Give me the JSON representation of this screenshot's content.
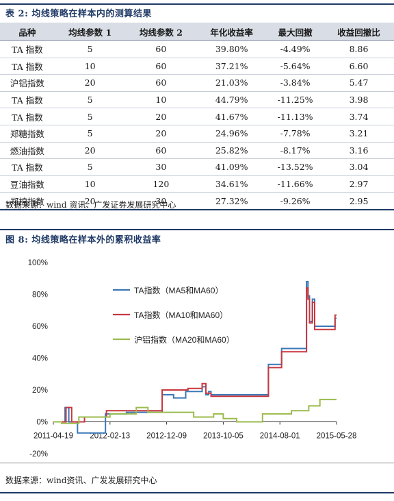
{
  "table_caption": "表 2: 均线策略在样本内的测算结果",
  "table": {
    "headers": [
      "品种",
      "均线参数 1",
      "均线参数 2",
      "年化收益率",
      "最大回撤",
      "收益回撤比"
    ],
    "rows": [
      [
        "TA 指数",
        "5",
        "60",
        "39.80%",
        "-4.49%",
        "8.86"
      ],
      [
        "TA 指数",
        "10",
        "60",
        "37.21%",
        "-5.64%",
        "6.60"
      ],
      [
        "沪铝指数",
        "20",
        "60",
        "21.03%",
        "-3.84%",
        "5.47"
      ],
      [
        "TA 指数",
        "5",
        "10",
        "44.79%",
        "-11.25%",
        "3.98"
      ],
      [
        "TA 指数",
        "5",
        "20",
        "41.67%",
        "-11.13%",
        "3.74"
      ],
      [
        "郑糖指数",
        "5",
        "20",
        "24.96%",
        "-7.78%",
        "3.21"
      ],
      [
        "燃油指数",
        "20",
        "60",
        "25.82%",
        "-8.17%",
        "3.16"
      ],
      [
        "TA 指数",
        "5",
        "30",
        "41.09%",
        "-13.52%",
        "3.04"
      ],
      [
        "豆油指数",
        "10",
        "120",
        "34.61%",
        "-11.66%",
        "2.97"
      ],
      [
        "郑棉指数",
        "20",
        "30",
        "27.32%",
        "-9.26%",
        "2.95"
      ]
    ]
  },
  "table_source": "数据来源：wind 资讯、广发证券发展研究中心",
  "figure_caption": "图 8:  均线策略在样本外的累积收益率",
  "figure_source": "数据来源：wind资讯、广发发展研究中心",
  "chart_data": {
    "type": "line",
    "title": "",
    "xlabel": "",
    "ylabel": "",
    "x_ticks": [
      "2011-04-19",
      "2012-02-13",
      "2012-12-09",
      "2013-10-05",
      "2014-08-01",
      "2015-05-28"
    ],
    "y_ticks": [
      "100%",
      "80%",
      "60%",
      "40%",
      "20%",
      "0%",
      "-20%"
    ],
    "ylim": [
      -20,
      100
    ],
    "xlim": [
      "2011-04-19",
      "2015-05-28"
    ],
    "legend_position": "upper-center",
    "colors": {
      "TA指数（MA5和MA60）": "#3a78b8",
      "TA指数（MA10和MA60）": "#c8373f",
      "沪铝指数（MA20和MA60）": "#9bbb4e"
    },
    "series": [
      {
        "name": "TA指数（MA5和MA60）",
        "color": "#3a78b8",
        "points": [
          [
            "2011-04-19",
            0
          ],
          [
            "2011-06-20",
            0
          ],
          [
            "2011-06-20",
            9
          ],
          [
            "2011-07-10",
            9
          ],
          [
            "2011-07-10",
            0
          ],
          [
            "2011-08-25",
            0
          ],
          [
            "2011-08-25",
            -7
          ],
          [
            "2012-01-20",
            -7
          ],
          [
            "2012-01-20",
            5
          ],
          [
            "2012-05-10",
            5
          ],
          [
            "2012-05-10",
            6
          ],
          [
            "2012-11-15",
            6
          ],
          [
            "2012-11-15",
            17
          ],
          [
            "2013-01-15",
            17
          ],
          [
            "2013-01-15",
            15
          ],
          [
            "2013-03-20",
            15
          ],
          [
            "2013-03-20",
            19
          ],
          [
            "2013-06-15",
            19
          ],
          [
            "2013-06-15",
            22
          ],
          [
            "2013-07-05",
            22
          ],
          [
            "2013-07-05",
            17
          ],
          [
            "2013-07-20",
            17
          ],
          [
            "2013-07-20",
            19
          ],
          [
            "2013-08-01",
            19
          ],
          [
            "2013-08-01",
            17
          ],
          [
            "2014-06-01",
            17
          ],
          [
            "2014-06-01",
            36
          ],
          [
            "2014-08-10",
            36
          ],
          [
            "2014-08-10",
            46
          ],
          [
            "2014-12-20",
            46
          ],
          [
            "2014-12-20",
            88
          ],
          [
            "2014-12-28",
            88
          ],
          [
            "2014-12-28",
            79
          ],
          [
            "2015-01-05",
            79
          ],
          [
            "2015-01-05",
            63
          ],
          [
            "2015-01-20",
            63
          ],
          [
            "2015-01-20",
            77
          ],
          [
            "2015-02-01",
            77
          ],
          [
            "2015-02-01",
            60
          ],
          [
            "2015-05-20",
            60
          ],
          [
            "2015-05-20",
            65
          ],
          [
            "2015-05-28",
            65
          ]
        ]
      },
      {
        "name": "TA指数（MA10和MA60）",
        "color": "#c8373f",
        "points": [
          [
            "2011-04-19",
            0
          ],
          [
            "2011-06-25",
            0
          ],
          [
            "2011-06-25",
            9
          ],
          [
            "2011-07-25",
            9
          ],
          [
            "2011-07-25",
            0
          ],
          [
            "2011-10-01",
            0
          ],
          [
            "2011-10-01",
            3
          ],
          [
            "2012-01-25",
            3
          ],
          [
            "2012-01-25",
            7
          ],
          [
            "2012-11-15",
            7
          ],
          [
            "2012-11-15",
            20
          ],
          [
            "2013-04-01",
            20
          ],
          [
            "2013-04-01",
            21
          ],
          [
            "2013-06-15",
            21
          ],
          [
            "2013-06-15",
            24
          ],
          [
            "2013-07-05",
            24
          ],
          [
            "2013-07-05",
            18
          ],
          [
            "2013-08-01",
            18
          ],
          [
            "2013-08-01",
            16
          ],
          [
            "2014-06-01",
            16
          ],
          [
            "2014-06-01",
            34
          ],
          [
            "2014-08-10",
            34
          ],
          [
            "2014-08-10",
            44
          ],
          [
            "2014-12-20",
            44
          ],
          [
            "2014-12-20",
            84
          ],
          [
            "2014-12-28",
            84
          ],
          [
            "2014-12-28",
            77
          ],
          [
            "2015-01-05",
            77
          ],
          [
            "2015-01-05",
            62
          ],
          [
            "2015-01-20",
            62
          ],
          [
            "2015-01-20",
            75
          ],
          [
            "2015-02-01",
            75
          ],
          [
            "2015-02-01",
            58
          ],
          [
            "2015-05-20",
            58
          ],
          [
            "2015-05-20",
            67
          ],
          [
            "2015-05-28",
            67
          ]
        ]
      },
      {
        "name": "沪铝指数（MA20和MA60）",
        "color": "#9bbb4e",
        "points": [
          [
            "2011-04-19",
            0
          ],
          [
            "2011-06-01",
            0
          ],
          [
            "2011-06-01",
            -1
          ],
          [
            "2011-09-01",
            -1
          ],
          [
            "2011-09-01",
            3
          ],
          [
            "2012-02-13",
            3
          ],
          [
            "2012-02-13",
            5
          ],
          [
            "2012-07-01",
            5
          ],
          [
            "2012-07-01",
            9
          ],
          [
            "2012-09-01",
            9
          ],
          [
            "2012-09-01",
            6
          ],
          [
            "2013-05-01",
            6
          ],
          [
            "2013-05-01",
            3
          ],
          [
            "2013-08-15",
            3
          ],
          [
            "2013-08-15",
            5
          ],
          [
            "2013-10-05",
            5
          ],
          [
            "2013-10-05",
            2
          ],
          [
            "2013-12-15",
            2
          ],
          [
            "2013-12-15",
            0
          ],
          [
            "2014-05-01",
            0
          ],
          [
            "2014-05-01",
            5
          ],
          [
            "2014-10-01",
            5
          ],
          [
            "2014-10-01",
            7
          ],
          [
            "2015-01-01",
            7
          ],
          [
            "2015-01-01",
            10
          ],
          [
            "2015-03-01",
            10
          ],
          [
            "2015-03-01",
            14
          ],
          [
            "2015-05-28",
            14
          ]
        ]
      }
    ]
  }
}
